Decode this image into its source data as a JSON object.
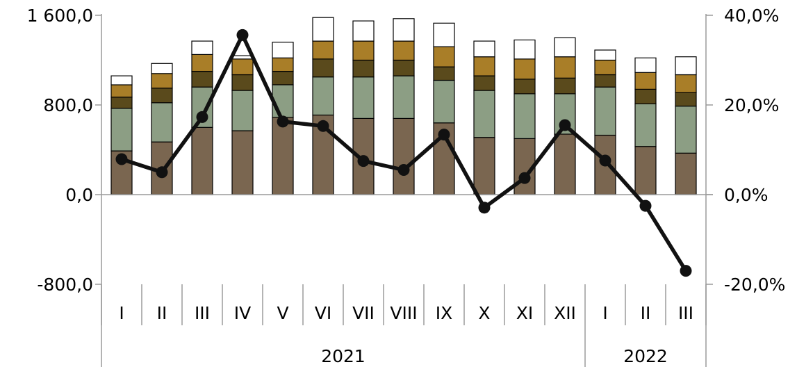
{
  "chart_data": {
    "type": "bar",
    "stacked": true,
    "secondary_line": true,
    "categories": [
      "I",
      "II",
      "III",
      "IV",
      "V",
      "VI",
      "VII",
      "VIII",
      "IX",
      "X",
      "XI",
      "XII",
      "I",
      "II",
      "III"
    ],
    "category_groups": [
      {
        "label": "2021",
        "count": 12
      },
      {
        "label": "2022",
        "count": 3
      }
    ],
    "series": [
      {
        "color": "#7a6650",
        "values": [
          390,
          470,
          600,
          570,
          690,
          710,
          680,
          680,
          640,
          510,
          500,
          540,
          530,
          430,
          370
        ]
      },
      {
        "color": "#8c9e84",
        "values": [
          380,
          350,
          360,
          360,
          290,
          340,
          370,
          380,
          380,
          420,
          400,
          360,
          430,
          380,
          420
        ]
      },
      {
        "color": "#5a4a1c",
        "values": [
          100,
          130,
          140,
          140,
          120,
          160,
          150,
          140,
          120,
          130,
          130,
          140,
          110,
          130,
          120
        ]
      },
      {
        "color": "#a97e28",
        "values": [
          110,
          130,
          150,
          140,
          120,
          160,
          170,
          170,
          180,
          170,
          180,
          190,
          130,
          150,
          160
        ]
      },
      {
        "color": "#ffffff",
        "values": [
          80,
          90,
          120,
          30,
          140,
          210,
          180,
          200,
          210,
          140,
          170,
          170,
          90,
          130,
          160
        ]
      }
    ],
    "line": {
      "color": "#111111",
      "axis": "right",
      "values": [
        7.9,
        5.0,
        17.3,
        35.6,
        16.3,
        15.3,
        7.5,
        5.5,
        13.4,
        -2.9,
        3.7,
        15.5,
        7.6,
        -2.5,
        -17.0
      ]
    },
    "y_left": {
      "min": -800,
      "max": 1600,
      "ticks": [
        "1 600,0",
        "800,0",
        "0,0",
        "-800,0"
      ],
      "tick_values": [
        1600,
        800,
        0,
        -800
      ]
    },
    "y_right": {
      "min": -20,
      "max": 40,
      "ticks": [
        "40,0%",
        "20,0%",
        "0,0%",
        "-20,0%"
      ],
      "tick_values": [
        40,
        20,
        0,
        -20
      ]
    },
    "grid": false,
    "legend": "none"
  }
}
